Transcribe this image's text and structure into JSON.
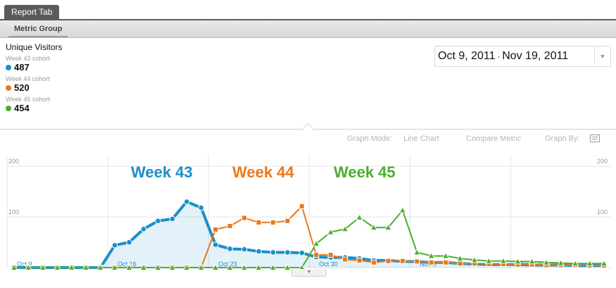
{
  "tabs": {
    "report_tab": "Report Tab",
    "metric_group": "Metric Group"
  },
  "summary": {
    "title": "Unique Visitors",
    "cohorts": [
      {
        "label": "Week 43 cohort",
        "value": "487",
        "color": "#1a8fc8"
      },
      {
        "label": "Week 44 cohort",
        "value": "520",
        "color": "#e8791a"
      },
      {
        "label": "Week 45 cohort",
        "value": "454",
        "color": "#4aae2c"
      }
    ]
  },
  "date_range": {
    "start": "Oct 9, 2011",
    "separator": "-",
    "end": "Nov 19, 2011"
  },
  "controls": {
    "graph_mode_label": "Graph Mode:",
    "graph_mode_value": "Line Chart",
    "compare_metric": "Compare Metric",
    "graph_by_label": "Graph By:"
  },
  "chart_data": {
    "type": "line",
    "ylim": [
      0,
      200
    ],
    "y_ticks": [
      "200",
      "100"
    ],
    "x_tick_labels": [
      "Oct 9",
      "Oct 16",
      "Oct 23",
      "Oct 30",
      "Nov 6",
      "Nov 13"
    ],
    "annotations": [
      "Week 43",
      "Week 44",
      "Week 45"
    ],
    "x": [
      "Oct 9",
      "Oct 10",
      "Oct 11",
      "Oct 12",
      "Oct 13",
      "Oct 14",
      "Oct 15",
      "Oct 16",
      "Oct 17",
      "Oct 18",
      "Oct 19",
      "Oct 20",
      "Oct 21",
      "Oct 22",
      "Oct 23",
      "Oct 24",
      "Oct 25",
      "Oct 26",
      "Oct 27",
      "Oct 28",
      "Oct 29",
      "Oct 30",
      "Oct 31",
      "Nov 1",
      "Nov 2",
      "Nov 3",
      "Nov 4",
      "Nov 5",
      "Nov 6",
      "Nov 7",
      "Nov 8",
      "Nov 9",
      "Nov 10",
      "Nov 11",
      "Nov 12",
      "Nov 13",
      "Nov 14",
      "Nov 15",
      "Nov 16",
      "Nov 17",
      "Nov 18",
      "Nov 19"
    ],
    "series": [
      {
        "name": "Week 43",
        "color": "#1a8fc8",
        "marker": "circle",
        "values": [
          0,
          0,
          0,
          0,
          0,
          0,
          0,
          44,
          50,
          76,
          92,
          96,
          130,
          118,
          45,
          37,
          36,
          32,
          30,
          30,
          29,
          21,
          20,
          20,
          18,
          14,
          14,
          12,
          12,
          10,
          10,
          8,
          7,
          6,
          6,
          6,
          5,
          5,
          5,
          4,
          4,
          4
        ]
      },
      {
        "name": "Week 44",
        "color": "#e8791a",
        "marker": "square",
        "values": [
          0,
          0,
          0,
          0,
          0,
          0,
          0,
          0,
          0,
          0,
          0,
          0,
          0,
          0,
          75,
          82,
          98,
          89,
          89,
          92,
          121,
          25,
          25,
          16,
          14,
          10,
          13,
          13,
          12,
          10,
          10,
          8,
          8,
          7,
          7,
          6,
          6,
          5,
          5,
          5,
          4,
          4
        ]
      },
      {
        "name": "Week 45",
        "color": "#4aae2c",
        "marker": "triangle",
        "values": [
          0,
          0,
          0,
          0,
          0,
          0,
          0,
          0,
          0,
          0,
          0,
          0,
          0,
          0,
          0,
          0,
          0,
          0,
          0,
          0,
          0,
          47,
          70,
          76,
          99,
          79,
          79,
          113,
          30,
          23,
          23,
          18,
          15,
          13,
          13,
          12,
          12,
          10,
          9,
          8,
          8,
          8
        ]
      }
    ]
  }
}
